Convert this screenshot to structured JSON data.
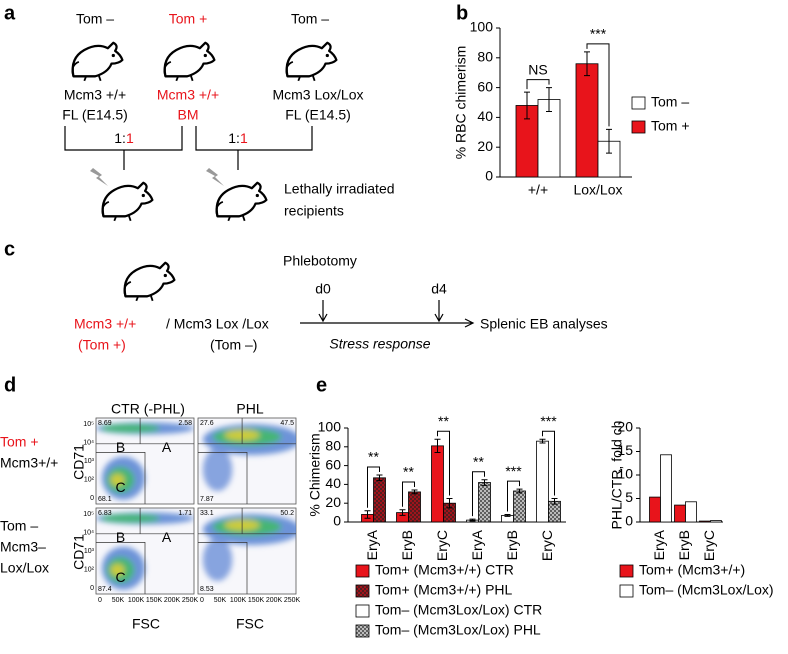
{
  "panel_a": {
    "label": "a",
    "groups": [
      {
        "genotype_top": "Tom –",
        "line1": "Mcm3 +/+",
        "line2": "FL (E14.5)"
      },
      {
        "genotype_top": "Tom +",
        "line1": "Mcm3 +/+",
        "line2": "BM"
      },
      {
        "genotype_top": "Tom –",
        "line1": "Mcm3 Lox/Lox",
        "line2": "FL (E14.5)"
      }
    ],
    "ratios": [
      {
        "left": "1:",
        "right": "1"
      },
      {
        "left": "1:",
        "right": "1"
      }
    ],
    "recipients": [
      "Lethally irradiated",
      "recipients"
    ]
  },
  "panel_c": {
    "label": "c",
    "donor_red": "Mcm3 +/+",
    "donor_rest": "/ Mcm3 Lox /Lox",
    "tag_red": "(Tom +)",
    "tag_rest": "(Tom –)",
    "event": "Phlebotomy",
    "days": [
      "d0",
      "d4"
    ],
    "process": "Stress response",
    "outcome": "Splenic EB analyses"
  },
  "panel_d": {
    "label": "d",
    "columns": [
      "CTR (-PHL)",
      "PHL"
    ],
    "rows": [
      [
        "Tom +",
        "Mcm3+/+"
      ],
      [
        "Tom –",
        "Mcm3–",
        "Lox/Lox"
      ]
    ],
    "y_axis": "CD71",
    "x_axis": "FSC",
    "gates": [
      "B",
      "A",
      "C"
    ],
    "plots": [
      {
        "B": "8.69",
        "A": "2.58",
        "C": "68.1"
      },
      {
        "B": "27.6",
        "A": "47.5",
        "C": "7.87"
      },
      {
        "B": "6.83",
        "A": "1.71",
        "C": "87.4"
      },
      {
        "B": "33.1",
        "A": "50.2",
        "C": "8.53"
      }
    ],
    "yticks": [
      "10⁵",
      "10⁴",
      "10³",
      "10²",
      "0"
    ],
    "xticks": [
      "0",
      "50K",
      "100K",
      "150K",
      "200K",
      "250K"
    ]
  },
  "chart_data": [
    {
      "type": "bar",
      "panel": "b",
      "ylabel": "% RBC chimerism",
      "categories": [
        "+/+",
        "Lox/Lox"
      ],
      "series": [
        {
          "name": "Tom +",
          "color": "#e8141b",
          "values": [
            48,
            76
          ],
          "errors": [
            9,
            8
          ]
        },
        {
          "name": "Tom –",
          "color": "#ffffff",
          "values": [
            52,
            24
          ],
          "errors": [
            8,
            8
          ]
        }
      ],
      "ylim": [
        0,
        100
      ],
      "yticks": [
        0,
        20,
        40,
        60,
        80,
        100
      ],
      "annotations": [
        "NS",
        "***"
      ]
    },
    {
      "type": "bar",
      "panel": "e",
      "ylabel": "% Chimerism",
      "categories": [
        "EryA",
        "EryB",
        "EryC",
        "EryA",
        "EryB",
        "EryC"
      ],
      "series": [
        {
          "name": "Tom+ (Mcm3+/+) CTR",
          "color": "#e8141b",
          "values": [
            8,
            10,
            81,
            null,
            null,
            null
          ],
          "errors": [
            4,
            3,
            7,
            null,
            null,
            null
          ]
        },
        {
          "name": "Tom+ (Mcm3+/+) PHL",
          "color": "#a0141b",
          "hatch": true,
          "values": [
            47,
            32,
            20,
            null,
            null,
            null
          ],
          "errors": [
            3,
            2,
            5,
            null,
            null,
            null
          ]
        },
        {
          "name": "Tom– (Mcm3Lox/Lox) CTR",
          "color": "#ffffff",
          "values": [
            null,
            null,
            null,
            2,
            7,
            86
          ],
          "errors": [
            null,
            null,
            null,
            1,
            1,
            2
          ]
        },
        {
          "name": "Tom– (Mcm3Lox/Lox) PHL",
          "color": "#bbbbbb",
          "hatch": true,
          "values": [
            null,
            null,
            null,
            42,
            33,
            22
          ],
          "errors": [
            null,
            null,
            null,
            3,
            2,
            3
          ]
        }
      ],
      "ylim": [
        0,
        100
      ],
      "yticks": [
        0,
        20,
        40,
        60,
        80,
        100
      ],
      "annotations": [
        "**",
        "**",
        "**",
        "**",
        "***",
        "***"
      ]
    },
    {
      "type": "bar",
      "ylabel": "PHL/CTR, fold ch",
      "categories": [
        "EryA",
        "EryB",
        "EryC"
      ],
      "series": [
        {
          "name": "Tom+ (Mcm3+/+)",
          "color": "#e8141b",
          "values": [
            5.3,
            3.6,
            0.2
          ]
        },
        {
          "name": "Tom– (Mcm3Lox/Lox)",
          "color": "#ffffff",
          "values": [
            14.3,
            4.3,
            0.3
          ]
        }
      ],
      "ylim": [
        0,
        20
      ],
      "yticks": [
        0,
        5,
        10,
        15,
        20
      ]
    }
  ]
}
